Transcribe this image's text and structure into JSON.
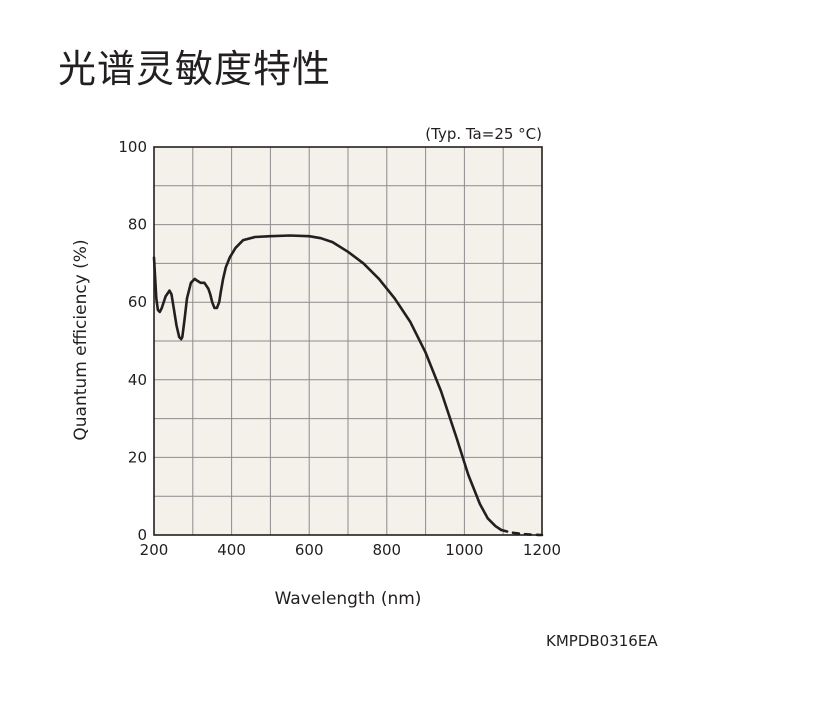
{
  "page": {
    "title": "光谱灵敏度特性",
    "ref_code": "KMPDB0316EA"
  },
  "chart_data": {
    "type": "line",
    "title": "",
    "condition": "(Typ. Ta=25 °C)",
    "xlabel": "Wavelength (nm)",
    "ylabel": "Quantum efficiency (%)",
    "xlim": [
      200,
      1200
    ],
    "ylim": [
      0,
      100
    ],
    "xticks": [
      200,
      400,
      600,
      800,
      1000,
      1200
    ],
    "yticks": [
      0,
      20,
      40,
      60,
      80,
      100
    ],
    "grid": true,
    "grid_color": "#8c8c8c",
    "plot_bg": "#f3f1e9",
    "line_color": "#231f20",
    "series": [
      {
        "style": "solid",
        "x": [
          200,
          203,
          206,
          210,
          215,
          220,
          230,
          240,
          245,
          250,
          258,
          265,
          270,
          273,
          278,
          285,
          295,
          305,
          312,
          320,
          330,
          340,
          345,
          350,
          356,
          362,
          368,
          372,
          378,
          385,
          395,
          410,
          430,
          460,
          500,
          550,
          600,
          630,
          660,
          700,
          740,
          780,
          820,
          860,
          900,
          940,
          980,
          1010,
          1040,
          1060,
          1080,
          1095
        ],
        "y": [
          71.5,
          66,
          61,
          58,
          57.5,
          58.5,
          61.5,
          63,
          62,
          59,
          54,
          51,
          50.5,
          51,
          55,
          61,
          65,
          66,
          65.5,
          65,
          65,
          63.5,
          62,
          60,
          58.5,
          58.5,
          60,
          62.5,
          66,
          69,
          71.5,
          74,
          76,
          76.8,
          77,
          77.2,
          77,
          76.5,
          75.5,
          73,
          70,
          66,
          61,
          55,
          47,
          37,
          25,
          15.5,
          8,
          4.3,
          2.3,
          1.3
        ]
      },
      {
        "style": "dashed",
        "x": [
          1095,
          1110,
          1130,
          1150,
          1170,
          1190,
          1200
        ],
        "y": [
          1.3,
          0.9,
          0.5,
          0.25,
          0.1,
          0.03,
          0
        ]
      }
    ]
  }
}
